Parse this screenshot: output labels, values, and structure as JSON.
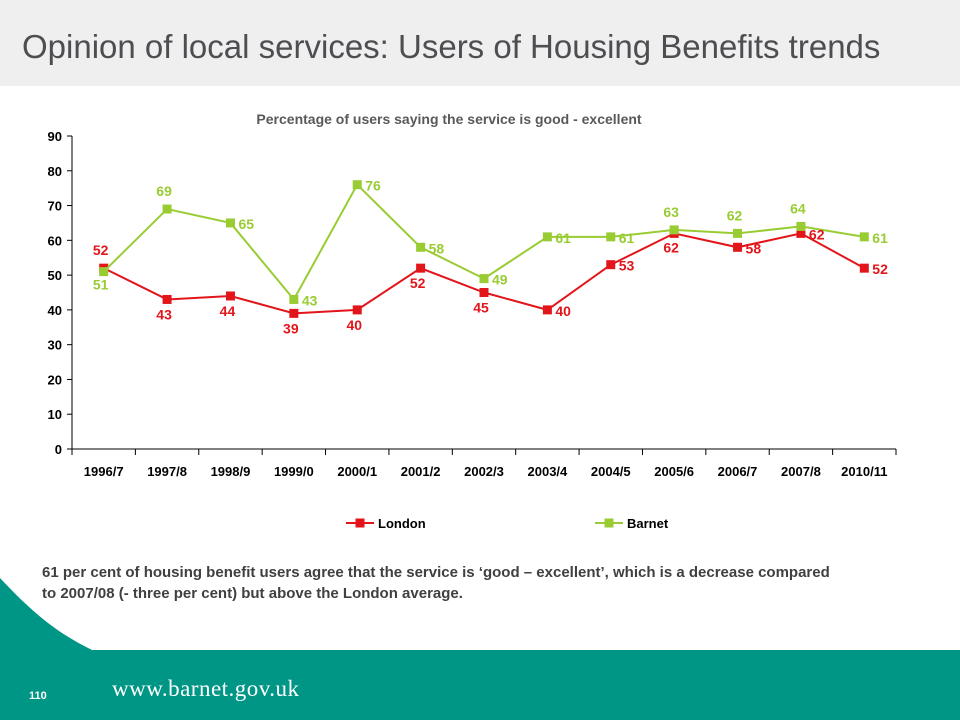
{
  "page": {
    "title": "Opinion of local services: Users of Housing Benefits trends",
    "summary": "61 per cent of  housing benefit users agree that the service is ‘good – excellent’, which is  a decrease compared to 2007/08 (- three per cent)  but above the London average.",
    "page_number": "110",
    "footer_url": "www.barnet.gov.uk"
  },
  "colors": {
    "london": "#e2151b",
    "barnet": "#99cc33",
    "footer_teal": "#009686",
    "title_band": "#efefef"
  },
  "chart_data": {
    "type": "line",
    "title": "Percentage of users saying the service is good - excellent",
    "categories": [
      "1996/7",
      "1997/8",
      "1998/9",
      "1999/0",
      "2000/1",
      "2001/2",
      "2002/3",
      "2003/4",
      "2004/5",
      "2005/6",
      "2006/7",
      "2007/8",
      "2010/11"
    ],
    "ylim": [
      0,
      90
    ],
    "yticks": [
      "0",
      "10",
      "20",
      "30",
      "40",
      "50",
      "60",
      "70",
      "80",
      "90"
    ],
    "grid": false,
    "legend_position": "bottom",
    "series": [
      {
        "name": "London",
        "color": "#e2151b",
        "values": [
          52,
          43,
          44,
          39,
          40,
          52,
          45,
          40,
          53,
          62,
          58,
          62,
          52
        ],
        "labels": [
          "52",
          "43",
          "44",
          "39",
          "40",
          "52",
          "45",
          "40",
          "53",
          "62",
          "58",
          "62",
          "52"
        ]
      },
      {
        "name": "Barnet",
        "color": "#99cc33",
        "values": [
          51,
          69,
          65,
          43,
          76,
          58,
          49,
          61,
          61,
          63,
          62,
          64,
          61
        ],
        "labels": [
          "51",
          "69",
          "65",
          "43",
          "76",
          "58",
          "49",
          "61",
          "61",
          "63",
          "62",
          "64",
          "61"
        ]
      }
    ]
  }
}
